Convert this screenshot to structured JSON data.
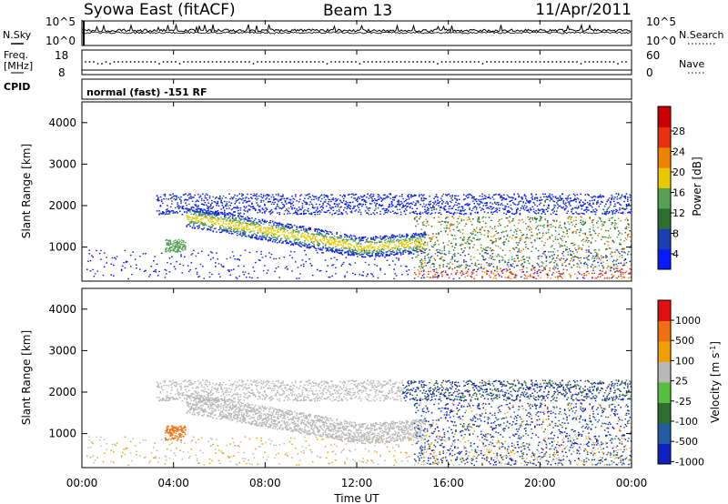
{
  "header": {
    "station": "Syowa East (fitACF)",
    "beam": "Beam 13",
    "date": "11/Apr/2011"
  },
  "strip": {
    "nsky_label": "N.Sky",
    "nsearch_label": "N.Search",
    "noise_ticks": [
      "10^5",
      "10^0"
    ],
    "freq_label": "Freq.",
    "freq_unit": "[MHz]",
    "freq_ticks": [
      "18",
      "8"
    ],
    "nave_label": "Nave",
    "nave_ticks": [
      "60",
      "0"
    ],
    "cpid_label": "CPID",
    "cpid_text": "normal (fast) -151 RF"
  },
  "colors": {
    "power": [
      "#0a1aff",
      "#1a3fb0",
      "#2e6e2e",
      "#55a055",
      "#e8c800",
      "#f08000",
      "#e83010",
      "#cc0000"
    ],
    "velocity": [
      "#1020c0",
      "#205ca0",
      "#2e6e2e",
      "#55c040",
      "#b8b8b8",
      "#f0a000",
      "#f07010",
      "#e01010"
    ]
  },
  "chart_data": [
    {
      "type": "heatmap",
      "title": "Power",
      "ylabel": "Slant Range [km]",
      "ylim": [
        180,
        4500
      ],
      "yticks": [
        "4000",
        "3000",
        "2000",
        "1000"
      ],
      "colorbar_label": "Power [dB]",
      "colorbar_ticks": [
        "28",
        "24",
        "20",
        "16",
        "12",
        "8",
        "4"
      ],
      "colorbar_range": [
        0,
        30
      ]
    },
    {
      "type": "heatmap",
      "title": "Velocity",
      "ylabel": "Slant Range [km]",
      "ylim": [
        180,
        4500
      ],
      "yticks": [
        "4000",
        "3000",
        "2000",
        "1000"
      ],
      "colorbar_label": "Velocity [m s",
      "colorbar_label_sup": "-1",
      "colorbar_label_end": "]",
      "colorbar_ticks": [
        "1000",
        "500",
        "100",
        "25",
        "-25",
        "-100",
        "-500",
        "-1000"
      ]
    }
  ],
  "xaxis": {
    "label": "Time UT",
    "ticks": [
      "00:00",
      "04:00",
      "08:00",
      "12:00",
      "16:00",
      "20:00",
      "00:00"
    ]
  }
}
